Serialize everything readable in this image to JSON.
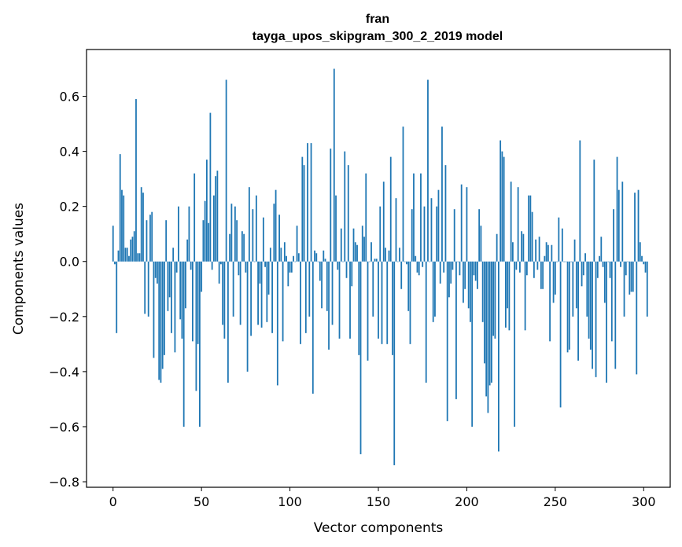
{
  "chart_data": {
    "type": "bar",
    "title": "fran",
    "subtitle": "tayga_upos_skipgram_300_2_2019 model",
    "xlabel": "Vector components",
    "ylabel": "Components values",
    "xlim": [
      -15,
      315
    ],
    "ylim": [
      -0.82,
      0.77
    ],
    "xticks": [
      0,
      50,
      100,
      150,
      200,
      250,
      300
    ],
    "xtick_labels": [
      "0",
      "50",
      "100",
      "150",
      "200",
      "250",
      "300"
    ],
    "yticks": [
      -0.8,
      -0.6,
      -0.4,
      -0.2,
      0.0,
      0.2,
      0.4,
      0.6
    ],
    "ytick_labels": [
      "−0.8",
      "−0.6",
      "−0.4",
      "−0.2",
      "0.0",
      "0.2",
      "0.4",
      "0.6"
    ],
    "grid": false,
    "legend": "none",
    "bar_color": "#1f77b4",
    "values": [
      0.13,
      -0.01,
      -0.26,
      0.04,
      0.39,
      0.26,
      0.24,
      0.05,
      0.05,
      0.02,
      0.08,
      0.09,
      0.11,
      0.59,
      0.03,
      0.03,
      0.27,
      0.25,
      -0.19,
      0.15,
      -0.2,
      0.17,
      0.18,
      -0.35,
      -0.06,
      -0.08,
      -0.43,
      -0.44,
      -0.39,
      -0.34,
      0.15,
      -0.18,
      -0.13,
      -0.26,
      0.05,
      -0.33,
      -0.04,
      0.2,
      -0.21,
      -0.28,
      -0.6,
      -0.17,
      0.08,
      0.2,
      -0.03,
      -0.29,
      0.32,
      -0.47,
      -0.3,
      -0.6,
      -0.11,
      0.15,
      0.22,
      0.37,
      0.14,
      0.54,
      -0.03,
      0.24,
      0.31,
      0.33,
      -0.08,
      -0.01,
      -0.23,
      -0.28,
      0.66,
      -0.44,
      0.1,
      0.21,
      -0.2,
      0.2,
      0.15,
      -0.05,
      -0.23,
      0.11,
      0.1,
      -0.04,
      -0.4,
      0.27,
      -0.27,
      0.19,
      0.0,
      0.24,
      -0.23,
      -0.08,
      -0.24,
      0.16,
      -0.02,
      -0.22,
      -0.12,
      0.05,
      -0.26,
      0.21,
      0.26,
      -0.45,
      0.17,
      0.05,
      -0.29,
      0.07,
      0.02,
      -0.09,
      -0.04,
      -0.04,
      0.02,
      0.0,
      0.13,
      0.03,
      -0.3,
      0.38,
      0.35,
      -0.26,
      0.43,
      -0.2,
      0.43,
      -0.48,
      0.04,
      0.03,
      0.0,
      -0.07,
      -0.17,
      0.04,
      0.01,
      -0.18,
      -0.32,
      0.41,
      -0.23,
      0.7,
      0.24,
      -0.03,
      -0.28,
      0.12,
      0.0,
      0.4,
      -0.06,
      0.35,
      -0.28,
      -0.09,
      0.12,
      0.07,
      0.06,
      -0.34,
      -0.7,
      0.13,
      0.09,
      0.32,
      -0.36,
      0.0,
      0.07,
      -0.2,
      0.01,
      0.01,
      -0.28,
      0.2,
      -0.3,
      0.29,
      0.05,
      -0.3,
      0.04,
      0.38,
      -0.34,
      -0.74,
      0.23,
      0.0,
      0.05,
      -0.1,
      0.49,
      0.0,
      -0.01,
      -0.18,
      -0.3,
      0.19,
      0.32,
      0.02,
      -0.04,
      -0.05,
      0.32,
      -0.02,
      0.2,
      -0.44,
      0.66,
      0.0,
      0.23,
      -0.22,
      -0.2,
      0.2,
      0.26,
      -0.08,
      0.49,
      -0.04,
      0.35,
      -0.58,
      -0.13,
      -0.08,
      -0.03,
      0.19,
      -0.5,
      0.0,
      -0.05,
      0.28,
      -0.15,
      -0.1,
      0.27,
      -0.17,
      -0.22,
      -0.6,
      -0.05,
      -0.07,
      -0.1,
      0.19,
      0.13,
      -0.22,
      -0.37,
      -0.49,
      -0.55,
      -0.45,
      -0.44,
      -0.27,
      -0.28,
      0.1,
      -0.69,
      0.44,
      0.4,
      0.38,
      -0.24,
      -0.17,
      -0.25,
      0.29,
      0.07,
      -0.6,
      -0.03,
      0.27,
      -0.04,
      0.11,
      0.1,
      -0.25,
      -0.05,
      0.24,
      0.24,
      0.18,
      -0.06,
      0.08,
      -0.03,
      0.09,
      -0.1,
      -0.1,
      0.02,
      0.07,
      0.06,
      -0.29,
      0.06,
      -0.15,
      -0.12,
      0.0,
      0.16,
      -0.53,
      0.12,
      0.0,
      0.0,
      -0.33,
      -0.32,
      0.0,
      -0.2,
      0.08,
      -0.17,
      -0.36,
      0.44,
      -0.09,
      -0.05,
      0.03,
      -0.2,
      -0.28,
      -0.32,
      -0.39,
      0.37,
      -0.42,
      -0.06,
      0.02,
      0.09,
      -0.02,
      -0.15,
      -0.44,
      0.0,
      -0.06,
      -0.29,
      0.19,
      -0.39,
      0.38,
      0.26,
      -0.02,
      0.29,
      -0.2,
      -0.05,
      0.0,
      -0.12,
      -0.11,
      -0.11,
      0.25,
      -0.41,
      0.26,
      0.07,
      0.02,
      -0.01,
      -0.04,
      -0.2
    ]
  }
}
